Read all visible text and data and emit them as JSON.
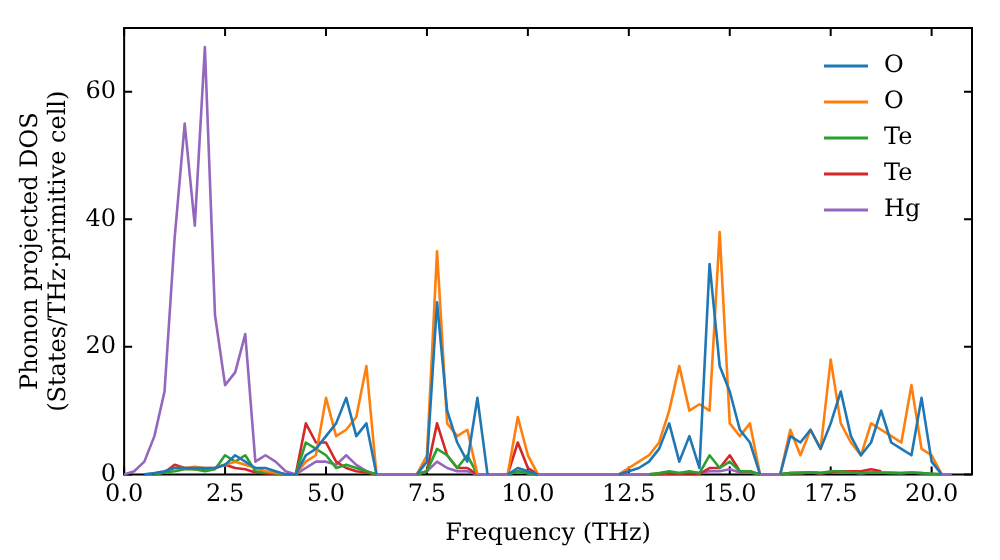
{
  "chart_data": {
    "type": "line",
    "xlabel": "Frequency (THz)",
    "ylabel": "Phonon projected DOS\n(States/THz·primitive cell)",
    "x": [
      0,
      0.25,
      0.5,
      0.75,
      1,
      1.25,
      1.5,
      1.75,
      2,
      2.25,
      2.5,
      2.75,
      3,
      3.25,
      3.5,
      3.75,
      4,
      4.25,
      4.5,
      4.75,
      5,
      5.25,
      5.5,
      5.75,
      6,
      6.25,
      6.5,
      6.75,
      7,
      7.25,
      7.5,
      7.75,
      8,
      8.25,
      8.5,
      8.75,
      9,
      9.25,
      9.5,
      9.75,
      10,
      10.25,
      10.5,
      10.75,
      11,
      11.25,
      11.5,
      11.75,
      12,
      12.25,
      12.5,
      12.75,
      13,
      13.25,
      13.5,
      13.75,
      14,
      14.25,
      14.5,
      14.75,
      15,
      15.25,
      15.5,
      15.75,
      16,
      16.25,
      16.5,
      16.75,
      17,
      17.25,
      17.5,
      17.75,
      18,
      18.25,
      18.5,
      18.75,
      19,
      19.25,
      19.5,
      19.75,
      20,
      20.25,
      20.5
    ],
    "xlim": [
      0,
      21
    ],
    "xticks": [
      {
        "value": 0,
        "label": "0.0"
      },
      {
        "value": 2.5,
        "label": "2.5"
      },
      {
        "value": 5,
        "label": "5.0"
      },
      {
        "value": 7.5,
        "label": "7.5"
      },
      {
        "value": 10,
        "label": "10.0"
      },
      {
        "value": 12.5,
        "label": "12.5"
      },
      {
        "value": 15,
        "label": "15.0"
      },
      {
        "value": 17.5,
        "label": "17.5"
      },
      {
        "value": 20,
        "label": "20.0"
      }
    ],
    "ylim": [
      0,
      70
    ],
    "yticks": [
      0,
      20,
      40,
      60
    ],
    "grid": false,
    "legend": "top right",
    "marker": "none",
    "line_style": "solid",
    "series": [
      {
        "name": "O",
        "color": "#1f77b4",
        "values": [
          null,
          null,
          0,
          0.2,
          0.5,
          1,
          1,
          1,
          1,
          1,
          1.5,
          3,
          2,
          1,
          1,
          0.5,
          0,
          0,
          3,
          4,
          6,
          8,
          12,
          6,
          8,
          0,
          null,
          null,
          null,
          0,
          2,
          27,
          10,
          5,
          2,
          12,
          0,
          null,
          0,
          1,
          0.5,
          0,
          null,
          null,
          null,
          null,
          null,
          null,
          null,
          0,
          0.5,
          1,
          2,
          4,
          8,
          2,
          6,
          1,
          33,
          17,
          13,
          7,
          5,
          0,
          null,
          0,
          6,
          5,
          7,
          4,
          8,
          13,
          6,
          3,
          5,
          10,
          5,
          4,
          3,
          12,
          2,
          0,
          null
        ]
      },
      {
        "name": "O",
        "color": "#ff7f0e",
        "values": [
          null,
          null,
          null,
          null,
          null,
          1,
          1,
          1.2,
          1,
          1,
          1.5,
          2,
          1.5,
          1,
          0.5,
          0.3,
          0,
          0,
          2,
          3,
          12,
          6,
          7,
          9,
          17,
          0,
          null,
          null,
          null,
          0,
          3,
          35,
          8,
          6,
          7,
          0,
          null,
          null,
          0,
          9,
          3,
          0,
          null,
          null,
          null,
          null,
          null,
          null,
          null,
          0,
          1,
          2,
          3,
          5,
          10,
          17,
          10,
          11,
          10,
          38,
          8,
          6,
          8,
          0,
          null,
          0,
          7,
          3,
          7,
          4,
          18,
          8,
          5,
          3,
          8,
          7,
          6,
          5,
          14,
          4,
          3,
          0,
          null
        ]
      },
      {
        "name": "Te",
        "color": "#2ca02c",
        "values": [
          null,
          null,
          null,
          0,
          0.3,
          0.5,
          0.8,
          0.8,
          0.5,
          0.8,
          3,
          2,
          3,
          0.5,
          0.3,
          0.2,
          0,
          0,
          5,
          4,
          3,
          1,
          1.5,
          1,
          0.5,
          0,
          null,
          null,
          null,
          0,
          0.5,
          4,
          3,
          1,
          3,
          0,
          null,
          null,
          0,
          0.5,
          0.2,
          0,
          null,
          null,
          null,
          null,
          null,
          null,
          null,
          null,
          null,
          null,
          0,
          0.2,
          0.5,
          0.2,
          0.5,
          0.2,
          3,
          1,
          2,
          0.5,
          0.5,
          0,
          null,
          0,
          0.2,
          0.2,
          0.3,
          0.2,
          0.5,
          0.5,
          0.3,
          0.2,
          0.3,
          0.3,
          0.2,
          0.2,
          0.3,
          0.2,
          0.1,
          0,
          null
        ]
      },
      {
        "name": "Te",
        "color": "#d62728",
        "values": [
          null,
          null,
          null,
          0,
          0.3,
          1.5,
          1,
          0.8,
          0.8,
          1,
          1.5,
          1,
          0.8,
          0.3,
          0.2,
          0.1,
          0,
          0,
          8,
          5,
          5,
          2,
          1,
          0.5,
          0.3,
          0,
          null,
          null,
          null,
          0,
          0.5,
          8,
          3,
          1,
          1,
          0,
          null,
          null,
          0,
          5,
          1,
          0,
          null,
          null,
          null,
          null,
          null,
          null,
          null,
          null,
          null,
          null,
          0,
          0.1,
          0.2,
          0.1,
          0.2,
          0.1,
          1,
          1,
          3,
          0.5,
          0.5,
          0,
          null,
          0,
          0.2,
          0.2,
          0.3,
          0.2,
          0.3,
          0.5,
          0.5,
          0.5,
          0.8,
          0.5,
          null,
          null,
          null,
          null,
          null,
          null,
          null
        ]
      },
      {
        "name": "Hg",
        "color": "#9467bd",
        "values": [
          0,
          0.5,
          2,
          6,
          13,
          37,
          55,
          39,
          67,
          25,
          14,
          16,
          22,
          2,
          3,
          2,
          0.5,
          0,
          1,
          2,
          2,
          1.5,
          3,
          1.5,
          0.5,
          0,
          0,
          0,
          0,
          0,
          0.5,
          2,
          1,
          0.5,
          0.5,
          0,
          0,
          0,
          0,
          0.5,
          0.2,
          0,
          0,
          0,
          0,
          0,
          0,
          0,
          0,
          0,
          0,
          0,
          0,
          0,
          0.2,
          0.2,
          0.3,
          0.2,
          0.5,
          0.5,
          0.8,
          0.3,
          0.3,
          0,
          0,
          0,
          0.2,
          0.3,
          0.3,
          0.2,
          0.3,
          0.3,
          0.3,
          0.2,
          0.3,
          0.3,
          0.3,
          0.2,
          0.3,
          0.2,
          0.1,
          0,
          0
        ]
      }
    ]
  }
}
